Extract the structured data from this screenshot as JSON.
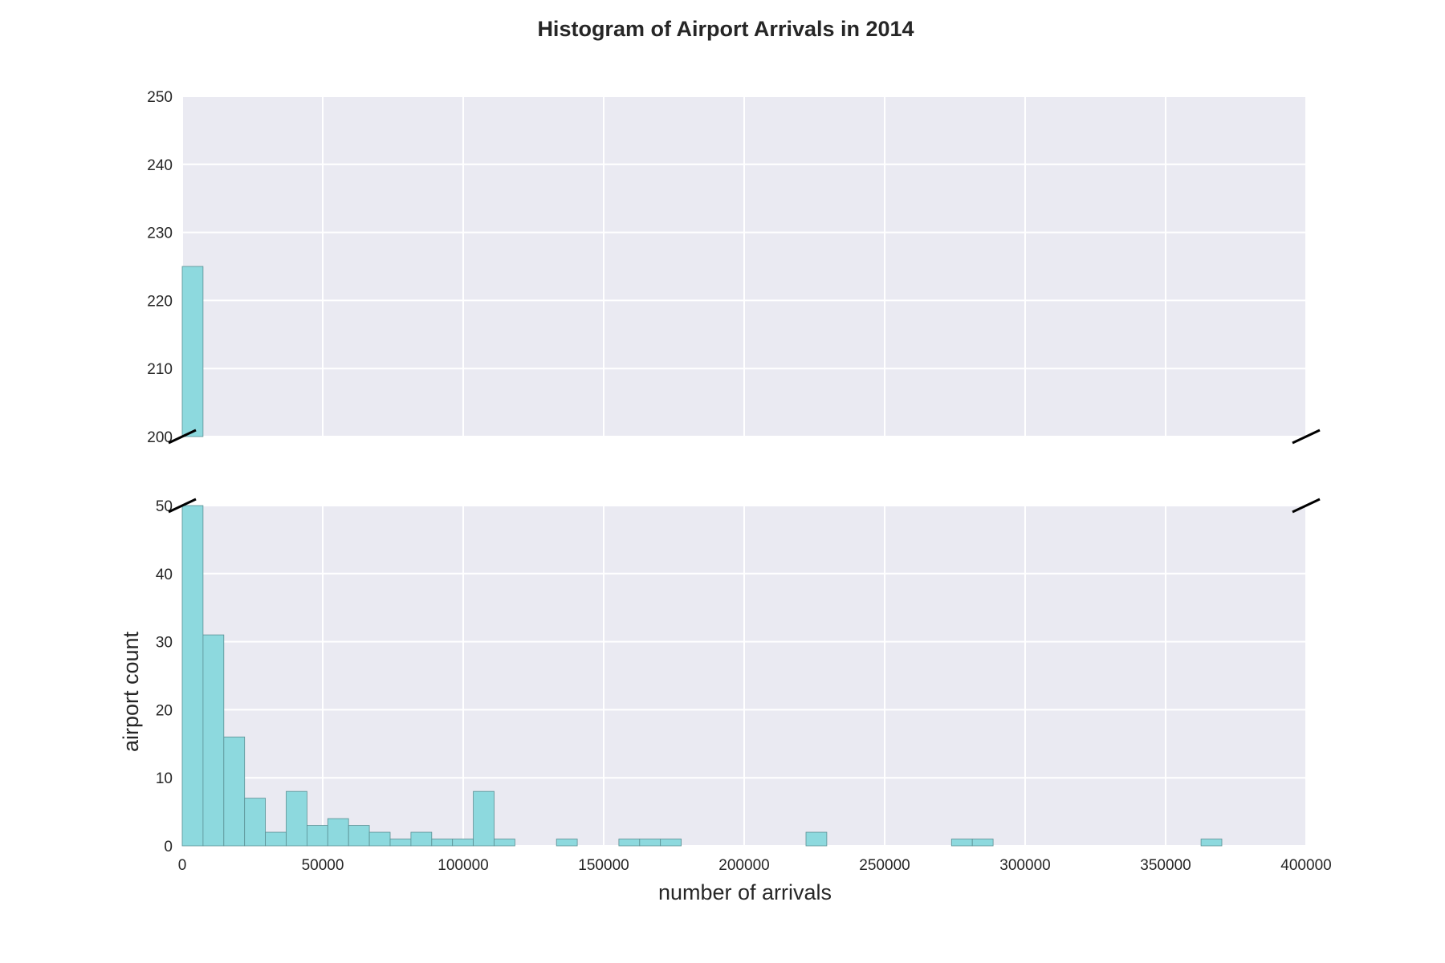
{
  "chart_data": {
    "type": "bar",
    "title": "Histogram of Airport Arrivals in 2014",
    "xlabel": "number of arrivals",
    "ylabel": "airport count",
    "xlim": [
      0,
      400000
    ],
    "x_ticks": [
      "0",
      "50000",
      "100000",
      "150000",
      "200000",
      "250000",
      "300000",
      "350000",
      "400000"
    ],
    "bin_width": 7400,
    "bins": [
      {
        "x": 0,
        "count": 225
      },
      {
        "x": 7400,
        "count": 31
      },
      {
        "x": 14800,
        "count": 16
      },
      {
        "x": 22200,
        "count": 7
      },
      {
        "x": 29600,
        "count": 2
      },
      {
        "x": 37000,
        "count": 8
      },
      {
        "x": 44400,
        "count": 3
      },
      {
        "x": 51800,
        "count": 4
      },
      {
        "x": 59200,
        "count": 3
      },
      {
        "x": 66600,
        "count": 2
      },
      {
        "x": 74000,
        "count": 1
      },
      {
        "x": 81400,
        "count": 2
      },
      {
        "x": 88800,
        "count": 1
      },
      {
        "x": 96200,
        "count": 1
      },
      {
        "x": 103600,
        "count": 8
      },
      {
        "x": 111000,
        "count": 1
      },
      {
        "x": 133200,
        "count": 1
      },
      {
        "x": 155400,
        "count": 1
      },
      {
        "x": 162800,
        "count": 1
      },
      {
        "x": 170200,
        "count": 1
      },
      {
        "x": 222000,
        "count": 2
      },
      {
        "x": 273800,
        "count": 1
      },
      {
        "x": 281200,
        "count": 1
      },
      {
        "x": 362600,
        "count": 1
      }
    ],
    "upper_panel": {
      "ylim": [
        200,
        250
      ],
      "y_ticks": [
        "200",
        "210",
        "220",
        "230",
        "240",
        "250"
      ]
    },
    "lower_panel": {
      "ylim": [
        0,
        50
      ],
      "y_ticks": [
        "0",
        "10",
        "20",
        "30",
        "40",
        "50"
      ]
    },
    "broken_axis": true,
    "grid": true,
    "colors": {
      "bar_fill": "#8dd9de",
      "bar_edge": "#5a8f93",
      "panel_bg": "#eaeaf2",
      "grid": "#ffffff",
      "text": "#262626"
    }
  }
}
